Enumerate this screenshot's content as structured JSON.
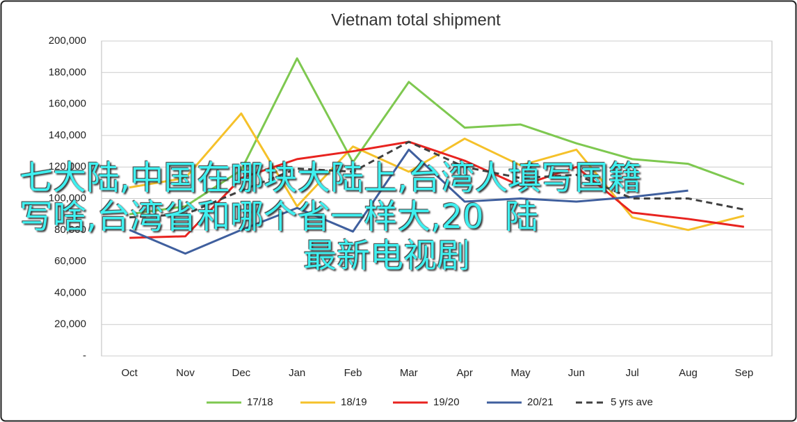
{
  "chart_data": {
    "type": "line",
    "title": "Vietnam total shipment",
    "categories": [
      "Oct",
      "Nov",
      "Dec",
      "Jan",
      "Feb",
      "Mar",
      "Apr",
      "May",
      "Jun",
      "Jul",
      "Aug",
      "Sep"
    ],
    "series": [
      {
        "name": "17/18",
        "color": "#7ec850",
        "values": [
          90000,
          95000,
          118000,
          189000,
          123000,
          174000,
          145000,
          147000,
          135000,
          125000,
          122000,
          109000
        ]
      },
      {
        "name": "18/19",
        "color": "#f5c12a",
        "values": [
          107000,
          113000,
          154000,
          95000,
          133000,
          117000,
          138000,
          121000,
          131000,
          88000,
          80000,
          89000
        ]
      },
      {
        "name": "19/20",
        "color": "#e8231f",
        "values": [
          75000,
          76000,
          113000,
          125000,
          130000,
          136000,
          124000,
          108000,
          120000,
          91000,
          87000,
          82000
        ]
      },
      {
        "name": "20/21",
        "color": "#3f5f9e",
        "values": [
          80000,
          65000,
          80000,
          94000,
          79000,
          131000,
          98000,
          100000,
          98000,
          101000,
          105000,
          null
        ]
      },
      {
        "name": "5 yrs ave",
        "color": "#404040",
        "dashed": true,
        "values": [
          88000,
          90000,
          105000,
          119000,
          117000,
          136000,
          120000,
          113000,
          115000,
          100000,
          100000,
          93000
        ]
      }
    ],
    "ylim": [
      0,
      200000
    ],
    "yticks": [
      {
        "value": 0,
        "label": "-"
      },
      {
        "value": 20000,
        "label": "20,000"
      },
      {
        "value": 40000,
        "label": "40,000"
      },
      {
        "value": 60000,
        "label": "60,000"
      },
      {
        "value": 80000,
        "label": "80,000"
      },
      {
        "value": 100000,
        "label": "100,000"
      },
      {
        "value": 120000,
        "label": "120,000"
      },
      {
        "value": 140000,
        "label": "140,000"
      },
      {
        "value": 160000,
        "label": "160,000"
      },
      {
        "value": 180000,
        "label": "180,000"
      },
      {
        "value": 200000,
        "label": "200,000"
      }
    ],
    "grid": true,
    "legend": "bottom"
  },
  "overlay": {
    "lines": [
      "七大陆,中国在哪块大陆上,台湾人填写国籍",
      "写啥,台湾省和哪个省一样大,20  陆",
      "最新电视剧"
    ]
  }
}
